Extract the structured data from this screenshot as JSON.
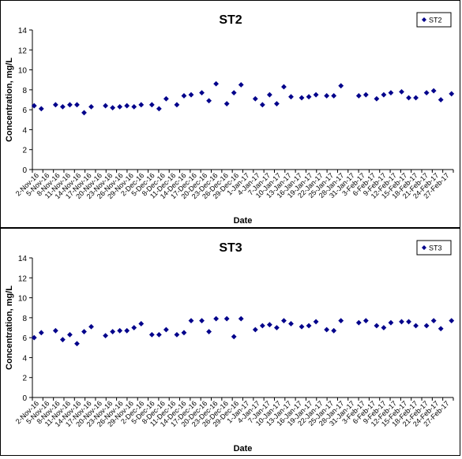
{
  "chart_data": [
    {
      "type": "scatter",
      "title": "ST2",
      "xlabel": "Date",
      "ylabel": "Concentration, mg/L",
      "ylim": [
        0,
        14
      ],
      "yticks": [
        0,
        2,
        4,
        6,
        8,
        10,
        12,
        14
      ],
      "xlim": [
        "2016-11-02",
        "2017-02-27"
      ],
      "xtick_labels": [
        "2-Nov-16",
        "5-Nov-16",
        "8-Nov-16",
        "11-Nov-16",
        "14-Nov-16",
        "17-Nov-16",
        "20-Nov-16",
        "23-Nov-16",
        "26-Nov-16",
        "29-Nov-16",
        "2-Dec-16",
        "5-Dec-16",
        "8-Dec-16",
        "11-Dec-16",
        "14-Dec-16",
        "17-Dec-16",
        "20-Dec-16",
        "23-Dec-16",
        "26-Dec-16",
        "29-Dec-16",
        "1-Jan-17",
        "4-Jan-17",
        "7-Jan-17",
        "10-Jan-17",
        "13-Jan-17",
        "16-Jan-17",
        "19-Jan-17",
        "22-Jan-17",
        "25-Jan-17",
        "28-Jan-17",
        "31-Jan-17",
        "3-Feb-17",
        "6-Feb-17",
        "9-Feb-17",
        "12-Feb-17",
        "15-Feb-17",
        "18-Feb-17",
        "21-Feb-17",
        "24-Feb-17",
        "27-Feb-17"
      ],
      "grid": false,
      "legend_position": "top-right",
      "color": "#00008B",
      "series": [
        {
          "name": "ST2",
          "x": [
            "2016-11-02",
            "2016-11-04",
            "2016-11-08",
            "2016-11-10",
            "2016-11-12",
            "2016-11-14",
            "2016-11-16",
            "2016-11-18",
            "2016-11-22",
            "2016-11-24",
            "2016-11-26",
            "2016-11-28",
            "2016-11-30",
            "2016-12-02",
            "2016-12-05",
            "2016-12-07",
            "2016-12-09",
            "2016-12-12",
            "2016-12-14",
            "2016-12-16",
            "2016-12-19",
            "2016-12-21",
            "2016-12-23",
            "2016-12-26",
            "2016-12-28",
            "2016-12-30",
            "2017-01-03",
            "2017-01-05",
            "2017-01-07",
            "2017-01-09",
            "2017-01-11",
            "2017-01-13",
            "2017-01-16",
            "2017-01-18",
            "2017-01-20",
            "2017-01-23",
            "2017-01-25",
            "2017-01-27",
            "2017-02-01",
            "2017-02-03",
            "2017-02-06",
            "2017-02-08",
            "2017-02-10",
            "2017-02-13",
            "2017-02-15",
            "2017-02-17",
            "2017-02-20",
            "2017-02-22",
            "2017-02-24",
            "2017-02-27"
          ],
          "y": [
            6.4,
            6.1,
            6.5,
            6.3,
            6.5,
            6.5,
            5.7,
            6.3,
            6.4,
            6.2,
            6.3,
            6.4,
            6.3,
            6.5,
            6.5,
            6.1,
            7.1,
            6.5,
            7.4,
            7.5,
            7.7,
            6.9,
            8.6,
            6.6,
            7.7,
            8.5,
            7.1,
            6.5,
            7.5,
            6.6,
            8.3,
            7.3,
            7.2,
            7.3,
            7.5,
            7.4,
            7.4,
            8.4,
            7.4,
            7.5,
            7.1,
            7.5,
            7.7,
            7.8,
            7.2,
            7.2,
            7.7,
            7.9,
            7.0,
            7.6
          ]
        }
      ]
    },
    {
      "type": "scatter",
      "title": "ST3",
      "xlabel": "Date",
      "ylabel": "Concentration, mg/L",
      "ylim": [
        0,
        14
      ],
      "yticks": [
        0,
        2,
        4,
        6,
        8,
        10,
        12,
        14
      ],
      "xlim": [
        "2016-11-02",
        "2017-02-27"
      ],
      "xtick_labels": [
        "2-Nov-16",
        "5-Nov-16",
        "8-Nov-16",
        "11-Nov-16",
        "14-Nov-16",
        "17-Nov-16",
        "20-Nov-16",
        "23-Nov-16",
        "26-Nov-16",
        "29-Nov-16",
        "2-Dec-16",
        "5-Dec-16",
        "8-Dec-16",
        "11-Dec-16",
        "14-Dec-16",
        "17-Dec-16",
        "20-Dec-16",
        "23-Dec-16",
        "26-Dec-16",
        "29-Dec-16",
        "1-Jan-17",
        "4-Jan-17",
        "7-Jan-17",
        "10-Jan-17",
        "13-Jan-17",
        "16-Jan-17",
        "19-Jan-17",
        "22-Jan-17",
        "25-Jan-17",
        "28-Jan-17",
        "31-Jan-17",
        "3-Feb-17",
        "6-Feb-17",
        "9-Feb-17",
        "12-Feb-17",
        "15-Feb-17",
        "18-Feb-17",
        "21-Feb-17",
        "24-Feb-17",
        "27-Feb-17"
      ],
      "grid": false,
      "legend_position": "top-right",
      "color": "#00008B",
      "series": [
        {
          "name": "ST3",
          "x": [
            "2016-11-02",
            "2016-11-04",
            "2016-11-08",
            "2016-11-10",
            "2016-11-12",
            "2016-11-14",
            "2016-11-16",
            "2016-11-18",
            "2016-11-22",
            "2016-11-24",
            "2016-11-26",
            "2016-11-28",
            "2016-11-30",
            "2016-12-02",
            "2016-12-05",
            "2016-12-07",
            "2016-12-09",
            "2016-12-12",
            "2016-12-14",
            "2016-12-16",
            "2016-12-19",
            "2016-12-21",
            "2016-12-23",
            "2016-12-26",
            "2016-12-28",
            "2016-12-30",
            "2017-01-03",
            "2017-01-05",
            "2017-01-07",
            "2017-01-09",
            "2017-01-11",
            "2017-01-13",
            "2017-01-16",
            "2017-01-18",
            "2017-01-20",
            "2017-01-23",
            "2017-01-25",
            "2017-01-27",
            "2017-02-01",
            "2017-02-03",
            "2017-02-06",
            "2017-02-08",
            "2017-02-10",
            "2017-02-13",
            "2017-02-15",
            "2017-02-17",
            "2017-02-20",
            "2017-02-22",
            "2017-02-24",
            "2017-02-27"
          ],
          "y": [
            6.0,
            6.5,
            6.7,
            5.8,
            6.3,
            5.4,
            6.6,
            7.1,
            6.2,
            6.6,
            6.7,
            6.7,
            7.0,
            7.4,
            6.3,
            6.3,
            6.8,
            6.3,
            6.5,
            7.7,
            7.7,
            6.6,
            7.9,
            7.9,
            6.1,
            7.9,
            6.8,
            7.2,
            7.3,
            7.0,
            7.7,
            7.4,
            7.1,
            7.2,
            7.6,
            6.8,
            6.7,
            7.7,
            7.5,
            7.7,
            7.2,
            7.0,
            7.5,
            7.6,
            7.6,
            7.2,
            7.2,
            7.7,
            6.9,
            7.7
          ]
        }
      ]
    }
  ]
}
